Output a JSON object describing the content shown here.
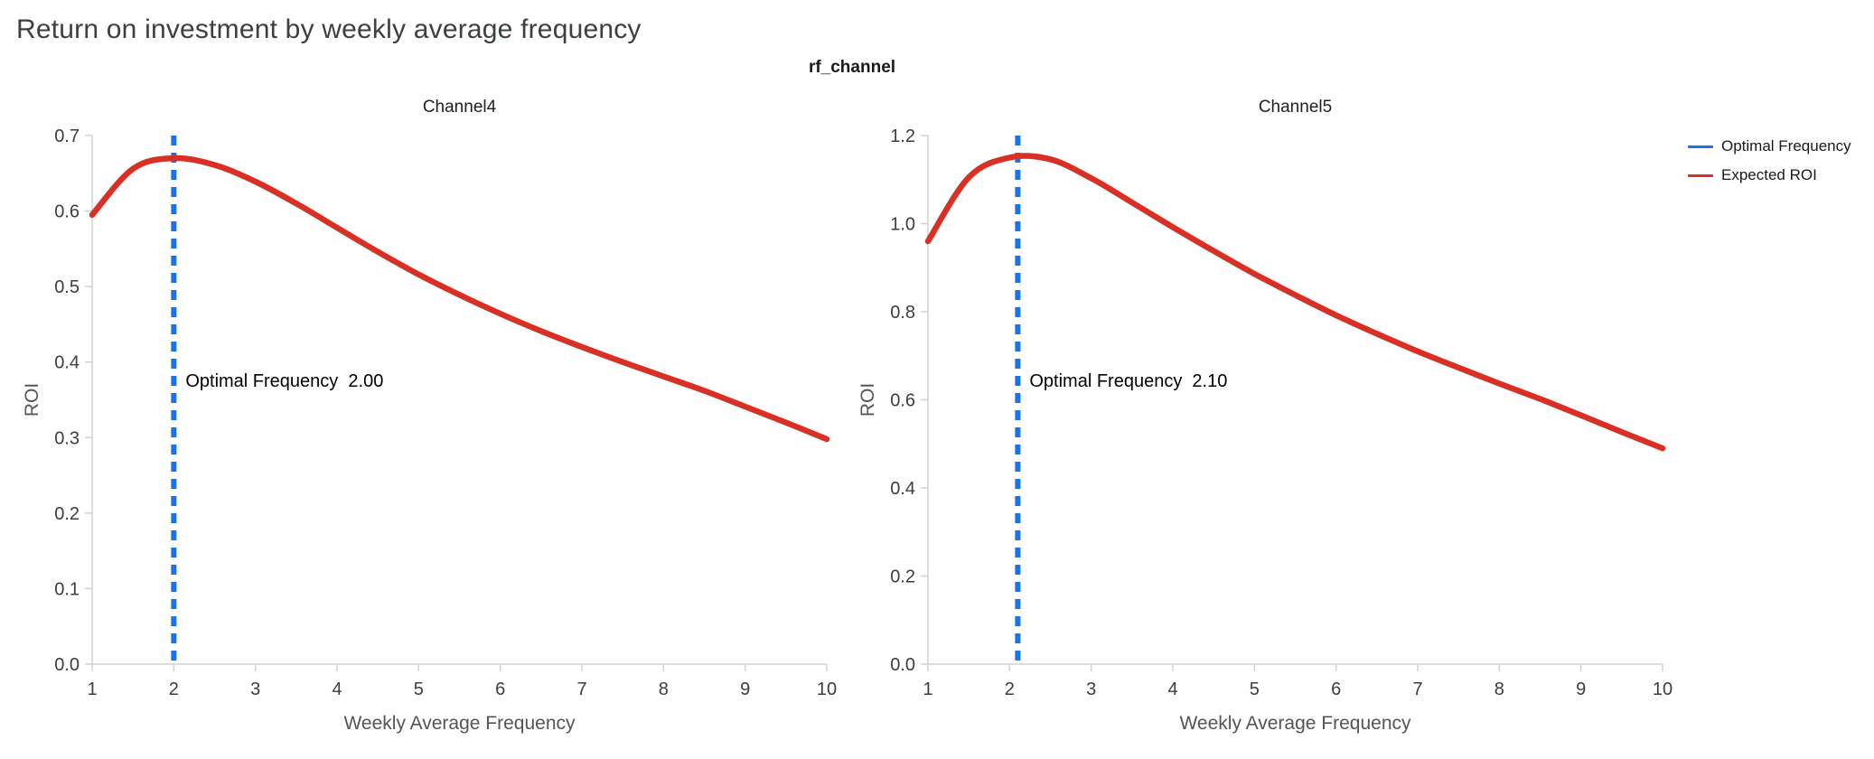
{
  "page": {
    "title": "Return on investment by weekly average frequency",
    "facet_title": "rf_channel"
  },
  "legend": {
    "items": [
      {
        "label": "Optimal Frequency",
        "color": "#1a73e8"
      },
      {
        "label": "Expected ROI",
        "color": "#d93025"
      }
    ]
  },
  "chart_data": [
    {
      "type": "line",
      "title": "Channel4",
      "xlabel": "Weekly Average Frequency",
      "ylabel": "ROI",
      "xlim": [
        1,
        10
      ],
      "ylim": [
        0,
        0.7
      ],
      "xticks": [
        "1",
        "2",
        "3",
        "4",
        "5",
        "6",
        "7",
        "8",
        "9",
        "10"
      ],
      "yticks": [
        "0.0",
        "0.1",
        "0.2",
        "0.3",
        "0.4",
        "0.5",
        "0.6",
        "0.7"
      ],
      "grid": false,
      "legend_position": "top-right",
      "optimal_frequency": 2.0,
      "annotation": {
        "label": "Optimal Frequency",
        "value": "2.00"
      },
      "rule": {
        "name": "Optimal Frequency",
        "x": 2.0,
        "color": "#1a73e8",
        "style": "dashed"
      },
      "series": [
        {
          "name": "Expected ROI",
          "color": "#d93025",
          "x": [
            1,
            1.5,
            2,
            2.5,
            3,
            3.5,
            4,
            4.5,
            5,
            5.5,
            6,
            6.5,
            7,
            7.5,
            8,
            8.5,
            9,
            9.5,
            10
          ],
          "y": [
            0.595,
            0.656,
            0.67,
            0.661,
            0.639,
            0.61,
            0.578,
            0.546,
            0.516,
            0.489,
            0.464,
            0.441,
            0.42,
            0.4,
            0.381,
            0.362,
            0.341,
            0.32,
            0.298
          ]
        }
      ]
    },
    {
      "type": "line",
      "title": "Channel5",
      "xlabel": "Weekly Average Frequency",
      "ylabel": "ROI",
      "xlim": [
        1,
        10
      ],
      "ylim": [
        0,
        1.2
      ],
      "xticks": [
        "1",
        "2",
        "3",
        "4",
        "5",
        "6",
        "7",
        "8",
        "9",
        "10"
      ],
      "yticks": [
        "0.0",
        "0.2",
        "0.4",
        "0.6",
        "0.8",
        "1.0",
        "1.2"
      ],
      "grid": false,
      "legend_position": "top-right",
      "optimal_frequency": 2.1,
      "annotation": {
        "label": "Optimal Frequency",
        "value": "2.10"
      },
      "rule": {
        "name": "Optimal Frequency",
        "x": 2.1,
        "color": "#1a73e8",
        "style": "dashed"
      },
      "series": [
        {
          "name": "Expected ROI",
          "color": "#d93025",
          "x": [
            1,
            1.5,
            2,
            2.5,
            3,
            3.5,
            4,
            4.5,
            5,
            5.5,
            6,
            6.5,
            7,
            7.5,
            8,
            8.5,
            9,
            9.5,
            10
          ],
          "y": [
            0.96,
            1.105,
            1.15,
            1.146,
            1.103,
            1.048,
            0.992,
            0.938,
            0.886,
            0.838,
            0.792,
            0.75,
            0.71,
            0.673,
            0.637,
            0.602,
            0.565,
            0.527,
            0.49
          ]
        }
      ]
    }
  ]
}
